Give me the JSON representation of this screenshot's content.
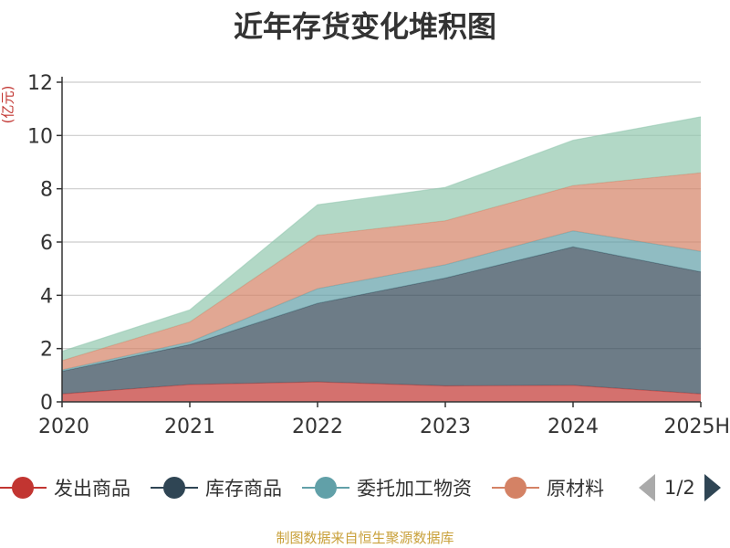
{
  "chart_data": {
    "type": "area",
    "stacked": true,
    "title": "近年存货变化堆积图",
    "ylabel": "(亿元)",
    "categories": [
      "2020",
      "2021",
      "2022",
      "2023",
      "2024",
      "2025H"
    ],
    "ylim": [
      0,
      12
    ],
    "yticks": [
      0,
      2,
      4,
      6,
      8,
      10,
      12
    ],
    "grid": true,
    "legend_position": "bottom",
    "series": [
      {
        "name": "发出商品",
        "color": "#c23531",
        "values": [
          0.3,
          0.65,
          0.75,
          0.6,
          0.62,
          0.3
        ]
      },
      {
        "name": "库存商品",
        "color": "#2f4554",
        "values": [
          0.85,
          1.5,
          2.95,
          4.05,
          5.2,
          4.58
        ]
      },
      {
        "name": "委托加工物资",
        "color": "#61a0a8",
        "values": [
          0.05,
          0.1,
          0.55,
          0.5,
          0.6,
          0.77
        ]
      },
      {
        "name": "原材料",
        "color": "#d48265",
        "values": [
          0.35,
          0.75,
          2.0,
          1.65,
          1.7,
          2.95
        ]
      },
      {
        "name": "",
        "color": "#91c7ae",
        "values": [
          0.35,
          0.45,
          1.15,
          1.25,
          1.7,
          2.1
        ]
      }
    ]
  },
  "legend": {
    "items": [
      {
        "label": "发出商品",
        "color": "#c23531"
      },
      {
        "label": "库存商品",
        "color": "#2f4554"
      },
      {
        "label": "委托加工物资",
        "color": "#61a0a8"
      },
      {
        "label": "原材料",
        "color": "#d48265"
      }
    ],
    "page": "1/2"
  },
  "source": "制图数据来自恒生聚源数据库"
}
